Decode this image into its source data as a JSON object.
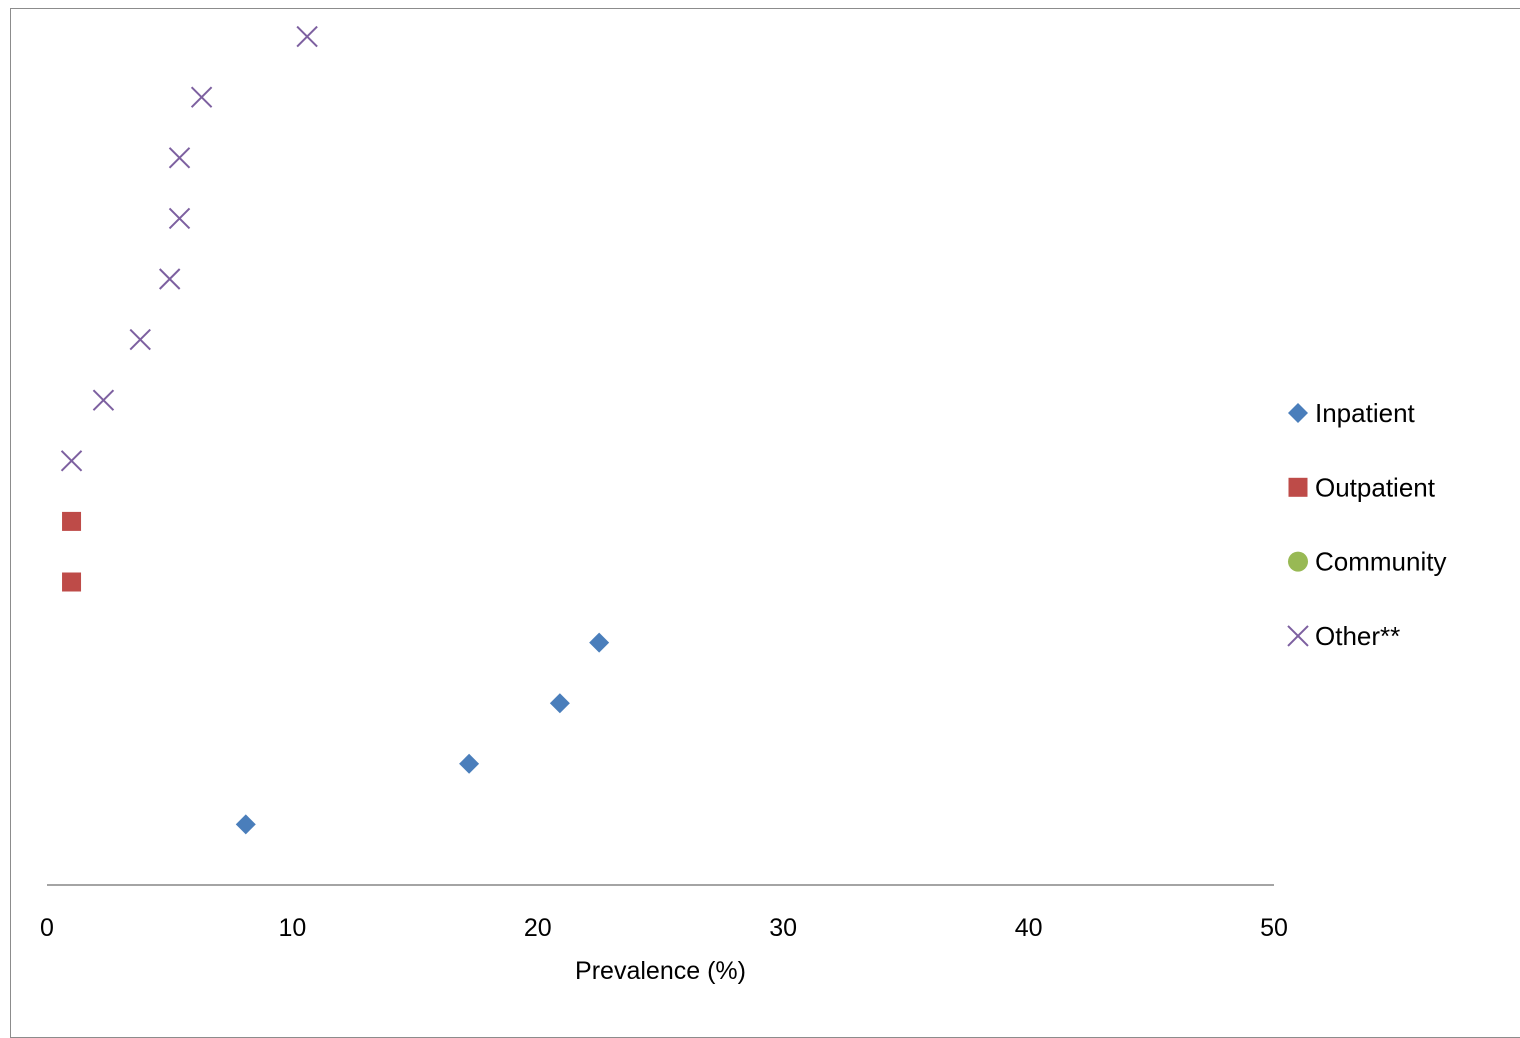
{
  "chart_data": {
    "type": "scatter",
    "xlabel": "Prevalence (%)",
    "ylabel": "",
    "xlim": [
      0,
      50
    ],
    "xticks": [
      0,
      10,
      20,
      30,
      40,
      50
    ],
    "ylim": [
      0,
      14.5
    ],
    "grid": false,
    "legend_position": "right",
    "series": [
      {
        "name": "Inpatient",
        "marker": "diamond",
        "color": "#4a7ebb",
        "points": [
          {
            "x": 8.1,
            "y": 1
          },
          {
            "x": 17.2,
            "y": 2
          },
          {
            "x": 20.9,
            "y": 3
          },
          {
            "x": 22.5,
            "y": 4
          }
        ]
      },
      {
        "name": "Outpatient",
        "marker": "square",
        "color": "#be4b48",
        "points": [
          {
            "x": 1.0,
            "y": 5
          },
          {
            "x": 1.0,
            "y": 6
          }
        ]
      },
      {
        "name": "Community",
        "marker": "circle",
        "color": "#98b954",
        "points": []
      },
      {
        "name": "Other**",
        "marker": "x",
        "color": "#7d60a0",
        "points": [
          {
            "x": 1.0,
            "y": 7
          },
          {
            "x": 2.3,
            "y": 8
          },
          {
            "x": 3.8,
            "y": 9
          },
          {
            "x": 5.0,
            "y": 10
          },
          {
            "x": 5.4,
            "y": 11
          },
          {
            "x": 5.4,
            "y": 12
          },
          {
            "x": 6.3,
            "y": 13
          },
          {
            "x": 10.6,
            "y": 14
          }
        ]
      }
    ]
  }
}
